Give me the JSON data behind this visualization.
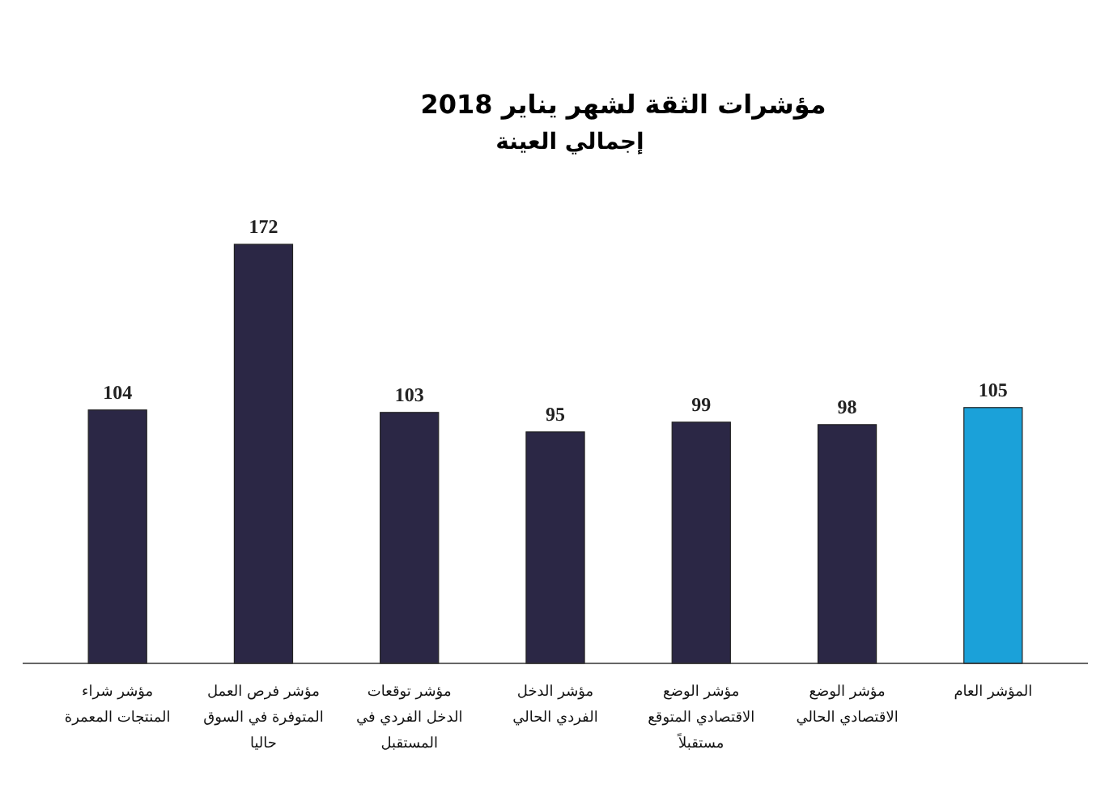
{
  "chart_data": {
    "type": "bar",
    "title": "مؤشرات الثقة لشهر يناير 2018",
    "subtitle": "إجمالي العينة",
    "categories": [
      "مؤشر شراء\nالمنتجات المعمرة",
      "مؤشر فرص العمل\nالمتوفرة في السوق\nحاليا",
      "مؤشر توقعات\nالدخل الفردي في\nالمستقبل",
      "مؤشر الدخل\nالفردي الحالي",
      "مؤشر الوضع\nالاقتصادي المتوقع\nمستقبلاً",
      "مؤشر الوضع\nالاقتصادي الحالي",
      "المؤشر العام"
    ],
    "values": [
      104,
      172,
      103,
      95,
      99,
      98,
      105
    ],
    "colors": [
      "#2b2745",
      "#2b2745",
      "#2b2745",
      "#2b2745",
      "#2b2745",
      "#2b2745",
      "#1ba1d9"
    ],
    "data_labels": true
  }
}
